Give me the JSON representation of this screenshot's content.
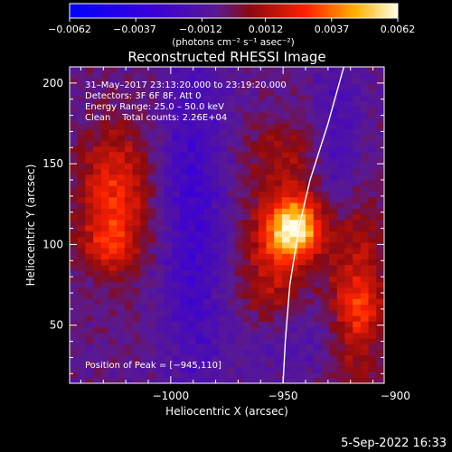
{
  "chart_data": {
    "type": "heatmap",
    "title": "Reconstructed RHESSI Image",
    "xlabel": "Heliocentric X (arcsec)",
    "ylabel": "Heliocentric Y (arcsec)",
    "xlim": [
      -1045,
      -905
    ],
    "ylim": [
      14,
      210
    ],
    "x_ticks": [
      -1000,
      -950,
      -900
    ],
    "x_tick_labels": [
      "−1000",
      "−950",
      "−900"
    ],
    "y_ticks": [
      50,
      100,
      150,
      200
    ],
    "y_tick_labels": [
      "50",
      "100",
      "150",
      "200"
    ],
    "colorbar": {
      "min": -0.0062,
      "max": 0.0062,
      "ticks": [
        -0.0062,
        -0.0037,
        -0.0012,
        0.0012,
        0.0037,
        0.0062
      ],
      "tick_labels": [
        "−0.0062",
        "−0.0037",
        "−0.0012",
        "0.0012",
        "0.0037",
        "0.0062"
      ],
      "unit_label": "(photons cm⁻² s⁻¹ asec⁻²)"
    },
    "annotations": [
      "31–May–2017 23:13:20.000 to 23:19:20.000",
      "Detectors: 3F 6F 8F, Att 0",
      "Energy Range: 25.0 – 50.0 keV",
      "Clean    Total counts: 2.26E+04"
    ],
    "peak_label": "Position of Peak = [−945,110]",
    "peak": {
      "x": -945,
      "y": 110,
      "value": 0.0062
    },
    "sources": [
      {
        "x": -945,
        "y": 110,
        "sx": 9,
        "sy": 13,
        "amp": 0.0062
      },
      {
        "x": -1025,
        "y": 130,
        "sx": 11,
        "sy": 30,
        "amp": 0.0032
      },
      {
        "x": -1028,
        "y": 100,
        "sx": 8,
        "sy": 10,
        "amp": 0.0018
      },
      {
        "x": -955,
        "y": 80,
        "sx": 10,
        "sy": 25,
        "amp": 0.002
      },
      {
        "x": -950,
        "y": 150,
        "sx": 12,
        "sy": 20,
        "amp": 0.0016
      },
      {
        "x": -918,
        "y": 70,
        "sx": 9,
        "sy": 45,
        "amp": 0.0028
      },
      {
        "x": -915,
        "y": 60,
        "sx": 6,
        "sy": 10,
        "amp": 0.0012
      },
      {
        "x": -990,
        "y": 120,
        "sx": 10,
        "sy": 80,
        "amp": -0.002
      },
      {
        "x": -925,
        "y": 160,
        "sx": 8,
        "sy": 45,
        "amp": -0.0015
      },
      {
        "x": -945,
        "y": 40,
        "sx": 20,
        "sy": 15,
        "amp": -0.001
      }
    ],
    "limb_curve": [
      [
        -923,
        210
      ],
      [
        -930,
        175
      ],
      [
        -938,
        140
      ],
      [
        -943,
        110
      ],
      [
        -947,
        75
      ],
      [
        -949,
        40
      ],
      [
        -950,
        14
      ]
    ],
    "colors": {
      "limb": "#ffffff",
      "background": "#000000",
      "axes": "#ffffff"
    }
  },
  "footer": {
    "timestamp": "5-Sep-2022 16:33"
  }
}
